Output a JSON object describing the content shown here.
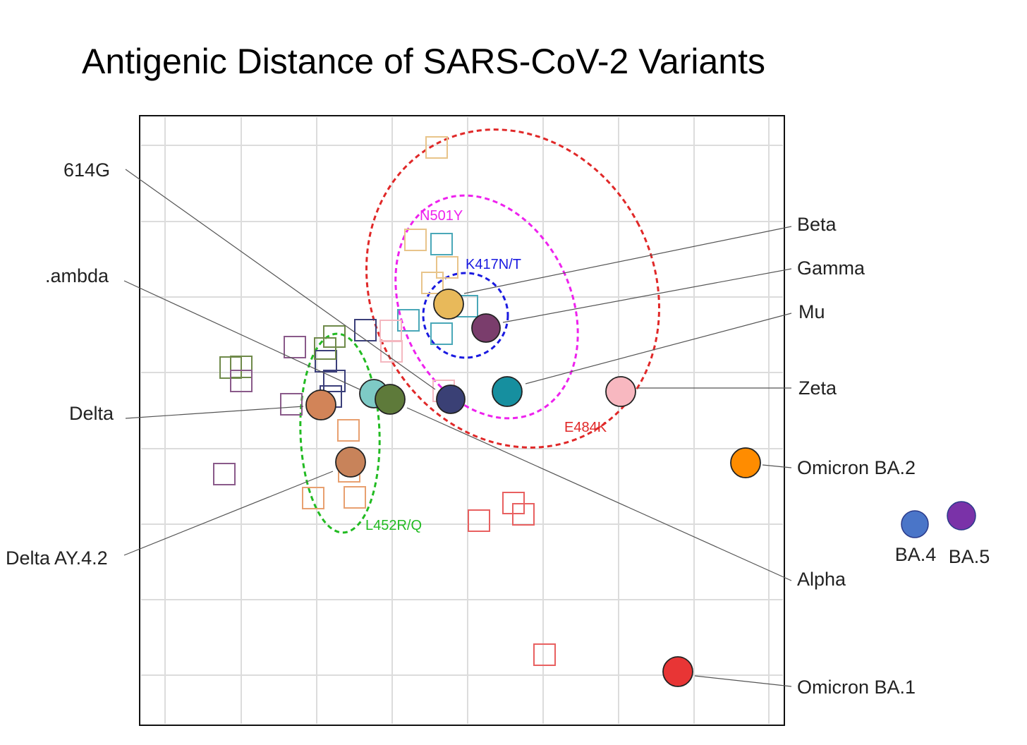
{
  "chart_data": {
    "type": "scatter",
    "title": "Antigenic Distance of SARS-CoV-2 Variants",
    "grid": true,
    "variants": [
      {
        "name": "614G",
        "color": "#3a4075"
      },
      {
        "name": "Lambda",
        "display": ".ambda",
        "color": "#7ecac6"
      },
      {
        "name": "Delta",
        "color": "#d28458"
      },
      {
        "name": "Delta AY.4.2",
        "color": "#c8835a"
      },
      {
        "name": "Beta",
        "color": "#e8b95a"
      },
      {
        "name": "Gamma",
        "color": "#7a3d6c"
      },
      {
        "name": "Mu",
        "color": "#168f9f"
      },
      {
        "name": "Zeta",
        "color": "#f8b8c0"
      },
      {
        "name": "Omicron BA.2",
        "color": "#ff8c00"
      },
      {
        "name": "Alpha",
        "color": "#5e7a3a"
      },
      {
        "name": "Omicron BA.1",
        "color": "#e83535"
      },
      {
        "name": "BA.4",
        "color": "#4a75c8"
      },
      {
        "name": "BA.5",
        "color": "#7a32a8"
      }
    ],
    "mutation_clusters": [
      {
        "name": "N501Y",
        "color": "#ee22ee"
      },
      {
        "name": "K417N/T",
        "color": "#1a1ae0"
      },
      {
        "name": "E484K",
        "color": "#e02828"
      },
      {
        "name": "L452R/Q",
        "color": "#22bb22"
      }
    ]
  }
}
